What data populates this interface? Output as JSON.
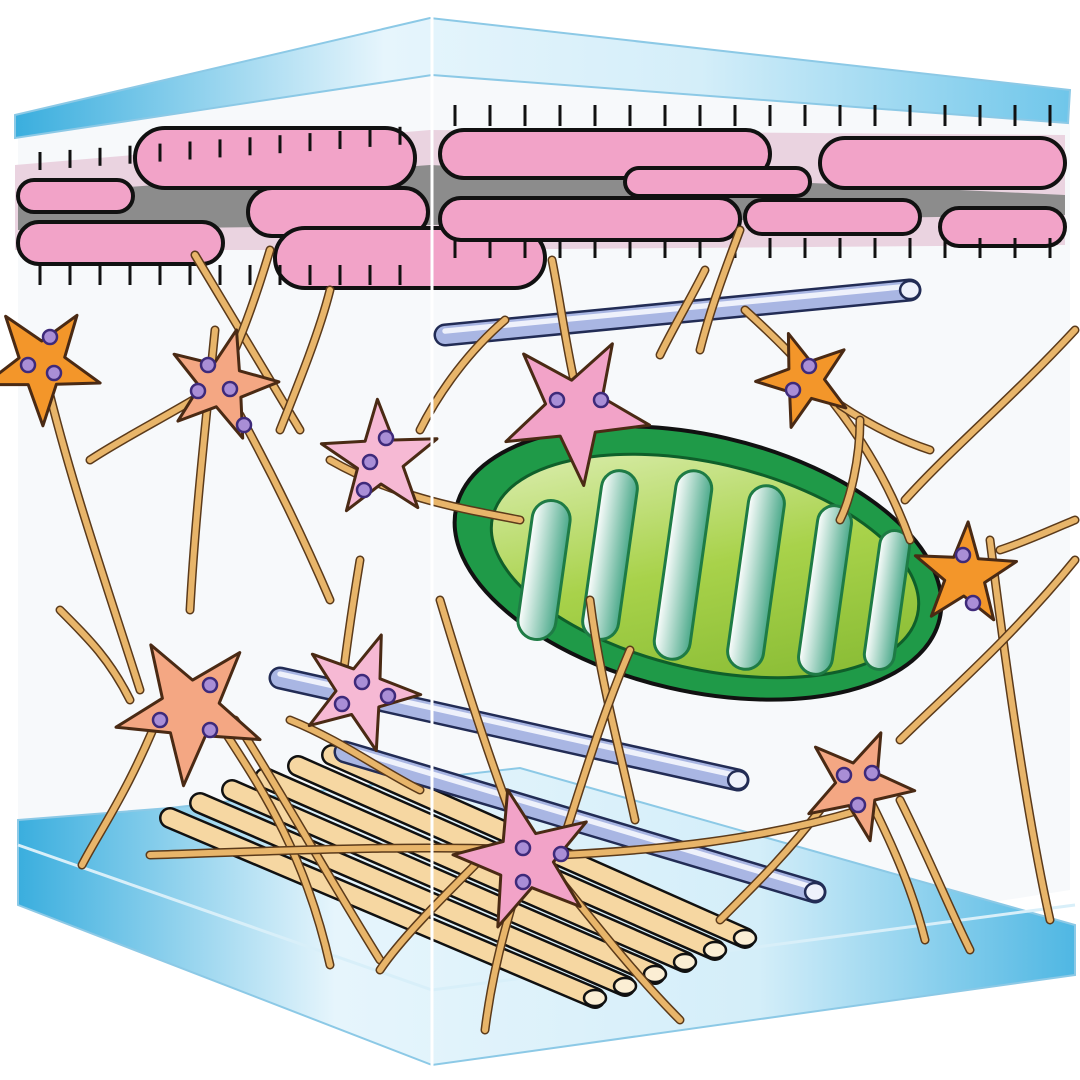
{
  "diagram": {
    "labels": [],
    "colors": {
      "background": "#ffffff",
      "plate_light": "#e6f5fc",
      "plate_dark": "#3aaede",
      "cell_pink": "#f2a3c8",
      "cell_pink_light": "#f6b9d4",
      "cell_orange": "#f3962a",
      "cell_salmon": "#f4a783",
      "process_tan": "#e8b56a",
      "nucleus_purple": "#a98ed6",
      "mitochondrion_outer": "#1f9a48",
      "mitochondrion_inner": "#a8d24a",
      "microtubule_blue": "#a9b6e3",
      "collagen_cream": "#f6d7a2",
      "outline": "#111111"
    },
    "components": [
      "top-plate",
      "bottom-plate",
      "front-edge-line",
      "muscle-fiber-band",
      "mitochondrion",
      "microtubule-rods",
      "collagen-bundle",
      "stellate-cells",
      "cell-processes"
    ]
  }
}
